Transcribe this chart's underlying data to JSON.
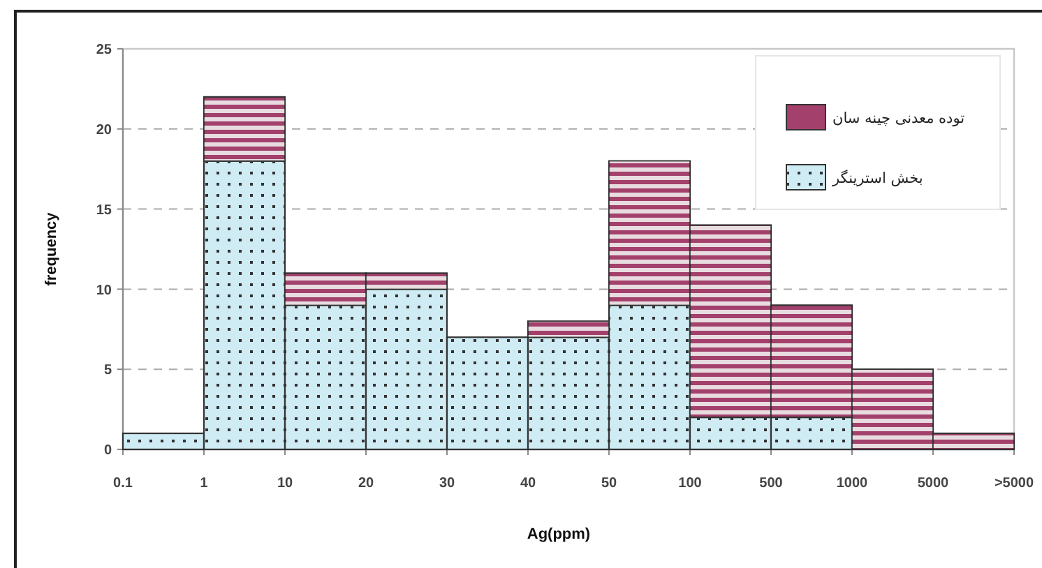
{
  "chart_data": {
    "type": "bar",
    "stacked": true,
    "xlabel": "Ag(ppm)",
    "ylabel": "frequency",
    "categories": [
      "0.1",
      null,
      "1",
      null,
      "10",
      null,
      "20",
      null,
      "30",
      null,
      "40",
      null,
      "50",
      null,
      "100",
      null,
      "500",
      null,
      "1000",
      null,
      "5000",
      null,
      ">5000"
    ],
    "series": [
      {
        "name": "بخش استرینگر",
        "color": "#cfebf4",
        "values": [
          null,
          1,
          null,
          18,
          null,
          9,
          null,
          10,
          null,
          7,
          null,
          7,
          null,
          9,
          null,
          2,
          null,
          2,
          null,
          0,
          null,
          0,
          null
        ]
      },
      {
        "name": "توده معدنی چینه سان",
        "color": "#a3406c",
        "values": [
          null,
          0,
          null,
          4,
          null,
          2,
          null,
          1,
          null,
          0,
          null,
          1,
          null,
          9,
          null,
          12,
          null,
          7,
          null,
          5,
          null,
          1,
          null
        ]
      }
    ],
    "ylim": [
      0,
      25
    ],
    "yticks": [
      0,
      5,
      10,
      15,
      20,
      25
    ],
    "grid": "y",
    "legend": "top right"
  }
}
